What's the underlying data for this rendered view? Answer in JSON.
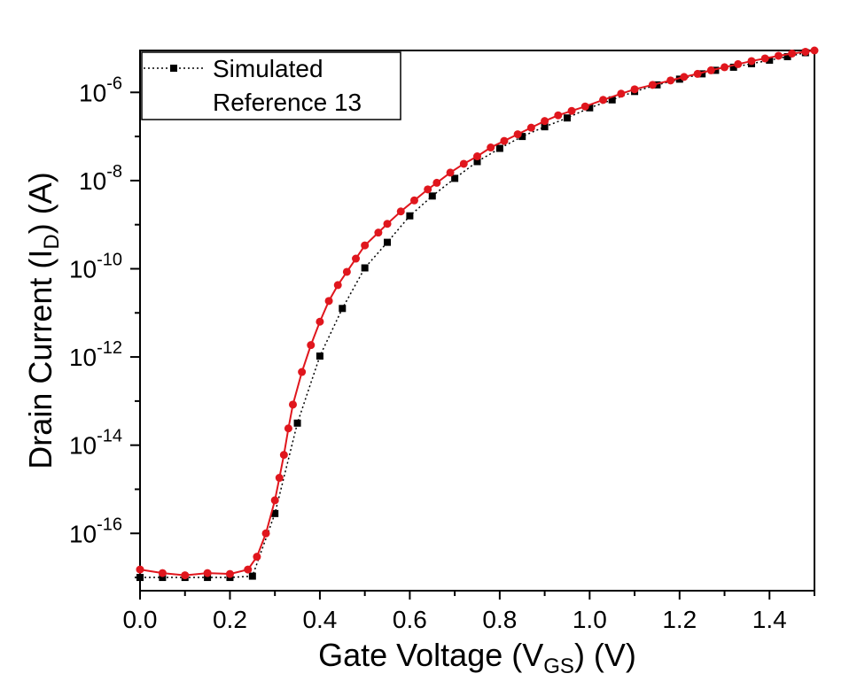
{
  "chart_data": {
    "type": "line",
    "title": "",
    "xlabel": {
      "text": "Gate Voltage (V",
      "sub": "GS",
      "tail": ") (V)"
    },
    "ylabel": {
      "text": "Drain Current (I",
      "sub": "D",
      "tail": ") (A)"
    },
    "xlim": [
      0,
      1.5
    ],
    "ylim_log10": [
      -17.3,
      -5.05
    ],
    "y_scale": "log",
    "x_ticks": [
      0.0,
      0.2,
      0.4,
      0.6,
      0.8,
      1.0,
      1.2,
      1.4
    ],
    "x_tick_labels": [
      "0.0",
      "0.2",
      "0.4",
      "0.6",
      "0.8",
      "1.0",
      "1.2",
      "1.4"
    ],
    "y_ticks_exp": [
      -6,
      -8,
      -10,
      -12,
      -14,
      -16
    ],
    "y_tick_base": "10",
    "legend_position": "top-left",
    "series": [
      {
        "name": "Simulated",
        "color": "#000000",
        "line_style": "dotted",
        "marker": "square",
        "x": [
          0.0,
          0.05,
          0.1,
          0.15,
          0.2,
          0.25,
          0.3,
          0.35,
          0.4,
          0.45,
          0.5,
          0.55,
          0.6,
          0.65,
          0.7,
          0.75,
          0.8,
          0.85,
          0.9,
          0.95,
          1.0,
          1.05,
          1.1,
          1.15,
          1.2,
          1.25,
          1.28,
          1.32,
          1.36,
          1.4,
          1.44,
          1.48
        ],
        "y_log10": [
          -17.0,
          -17.0,
          -17.0,
          -17.0,
          -17.0,
          -16.97,
          -15.55,
          -13.5,
          -11.98,
          -10.9,
          -9.98,
          -9.4,
          -8.8,
          -8.35,
          -7.95,
          -7.57,
          -7.27,
          -7.0,
          -6.78,
          -6.58,
          -6.35,
          -6.17,
          -5.98,
          -5.83,
          -5.7,
          -5.58,
          -5.5,
          -5.43,
          -5.35,
          -5.27,
          -5.19,
          -5.1
        ]
      },
      {
        "name": "Reference 13",
        "color": "#e0161d",
        "line_style": "solid",
        "marker": "circle",
        "x": [
          0.0,
          0.05,
          0.1,
          0.15,
          0.2,
          0.24,
          0.26,
          0.28,
          0.3,
          0.31,
          0.32,
          0.33,
          0.34,
          0.36,
          0.38,
          0.4,
          0.42,
          0.44,
          0.46,
          0.48,
          0.5,
          0.53,
          0.55,
          0.58,
          0.61,
          0.64,
          0.66,
          0.69,
          0.72,
          0.75,
          0.78,
          0.81,
          0.84,
          0.87,
          0.9,
          0.93,
          0.96,
          0.99,
          1.03,
          1.07,
          1.1,
          1.14,
          1.18,
          1.21,
          1.24,
          1.27,
          1.3,
          1.33,
          1.36,
          1.39,
          1.42,
          1.45,
          1.48,
          1.5
        ],
        "y_log10": [
          -16.82,
          -16.9,
          -16.95,
          -16.9,
          -16.92,
          -16.82,
          -16.53,
          -16.0,
          -15.25,
          -14.74,
          -14.22,
          -13.62,
          -13.08,
          -12.34,
          -11.73,
          -11.2,
          -10.73,
          -10.37,
          -10.07,
          -9.77,
          -9.47,
          -9.18,
          -8.98,
          -8.7,
          -8.45,
          -8.2,
          -8.05,
          -7.82,
          -7.62,
          -7.45,
          -7.25,
          -7.1,
          -6.95,
          -6.8,
          -6.65,
          -6.52,
          -6.42,
          -6.32,
          -6.17,
          -6.03,
          -5.93,
          -5.83,
          -5.73,
          -5.65,
          -5.58,
          -5.5,
          -5.43,
          -5.36,
          -5.29,
          -5.23,
          -5.17,
          -5.12,
          -5.08,
          -5.05
        ]
      }
    ]
  }
}
